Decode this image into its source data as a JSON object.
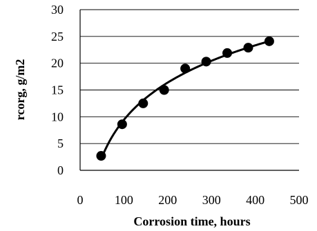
{
  "chart_data": {
    "type": "scatter",
    "title": "",
    "xlabel": "Corrosion time, hours",
    "ylabel": "rcorg, g/m2",
    "xlim": [
      0,
      500
    ],
    "ylim": [
      0,
      30
    ],
    "x_ticks": [
      0,
      100,
      200,
      300,
      400,
      500
    ],
    "y_ticks": [
      0,
      5,
      10,
      15,
      20,
      25,
      30
    ],
    "grid": "horizontal",
    "legend": "none",
    "series": [
      {
        "x": [
          48,
          96,
          144,
          192,
          240,
          288,
          336,
          384,
          432
        ],
        "y": [
          2.7,
          8.6,
          12.5,
          15.0,
          19.0,
          20.3,
          21.9,
          22.9,
          24.1
        ]
      }
    ],
    "trendline": {
      "type": "logarithmic",
      "x_range": [
        48,
        432
      ]
    },
    "colors": {
      "points": "#000000",
      "line": "#000000",
      "grid": "#000000"
    }
  }
}
